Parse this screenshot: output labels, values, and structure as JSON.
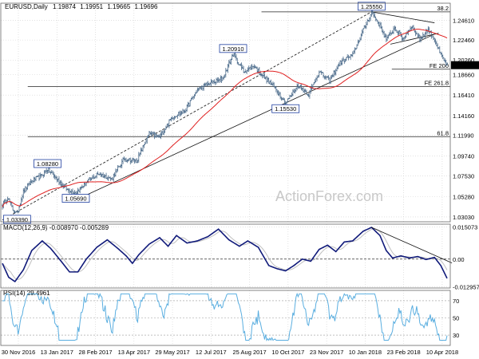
{
  "chart_data": [
    {
      "type": "candlestick",
      "title": "EURUSD,Daily",
      "ohlc": [
        "1.19874",
        "1.19951",
        "1.19665",
        "1.19696"
      ],
      "last_price": "1.19696",
      "ylim": [
        1.025,
        1.265
      ],
      "y_ticks": [
        1.0303,
        1.0528,
        1.0753,
        1.0974,
        1.1199,
        1.1416,
        1.1641,
        1.1866,
        1.2026,
        1.2246,
        1.2461
      ],
      "y_tick_labels": [
        "1.03030",
        "1.05280",
        "1.07530",
        "1.09740",
        "1.11990",
        "1.14160",
        "1.16410",
        "1.18660",
        "1.20260",
        "1.22460",
        "1.24610"
      ],
      "x_labels": [
        "30 Nov 2016",
        "13 Jan 2017",
        "28 Feb 2017",
        "13 Apr 2017",
        "29 May 2017",
        "12 Jul 2017",
        "25 Aug 2017",
        "10 Oct 2017",
        "23 Nov 2017",
        "10 Jan 2018",
        "23 Feb 2018",
        "10 Apr 2018"
      ],
      "anchors": [
        {
          "i": 0,
          "v": 1.043
        },
        {
          "i": 5,
          "v": 1.052
        },
        {
          "i": 10,
          "v": 1.0385
        },
        {
          "i": 14,
          "v": 1.0339
        },
        {
          "i": 20,
          "v": 1.058
        },
        {
          "i": 28,
          "v": 1.07
        },
        {
          "i": 37,
          "v": 1.075
        },
        {
          "i": 43,
          "v": 1.083
        },
        {
          "i": 52,
          "v": 1.072
        },
        {
          "i": 62,
          "v": 1.06
        },
        {
          "i": 70,
          "v": 1.0569
        },
        {
          "i": 80,
          "v": 1.068
        },
        {
          "i": 92,
          "v": 1.078
        },
        {
          "i": 104,
          "v": 1.072
        },
        {
          "i": 116,
          "v": 1.094
        },
        {
          "i": 128,
          "v": 1.092
        },
        {
          "i": 140,
          "v": 1.122
        },
        {
          "i": 150,
          "v": 1.118
        },
        {
          "i": 162,
          "v": 1.14
        },
        {
          "i": 174,
          "v": 1.147
        },
        {
          "i": 186,
          "v": 1.17
        },
        {
          "i": 196,
          "v": 1.176
        },
        {
          "i": 210,
          "v": 1.182
        },
        {
          "i": 220,
          "v": 1.2091
        },
        {
          "i": 230,
          "v": 1.19
        },
        {
          "i": 240,
          "v": 1.196
        },
        {
          "i": 250,
          "v": 1.183
        },
        {
          "i": 260,
          "v": 1.172
        },
        {
          "i": 270,
          "v": 1.1553
        },
        {
          "i": 282,
          "v": 1.175
        },
        {
          "i": 292,
          "v": 1.165
        },
        {
          "i": 302,
          "v": 1.19
        },
        {
          "i": 312,
          "v": 1.18
        },
        {
          "i": 322,
          "v": 1.2
        },
        {
          "i": 334,
          "v": 1.208
        },
        {
          "i": 344,
          "v": 1.235
        },
        {
          "i": 352,
          "v": 1.2555
        },
        {
          "i": 360,
          "v": 1.24
        },
        {
          "i": 366,
          "v": 1.225
        },
        {
          "i": 374,
          "v": 1.238
        },
        {
          "i": 382,
          "v": 1.226
        },
        {
          "i": 390,
          "v": 1.24
        },
        {
          "i": 398,
          "v": 1.226
        },
        {
          "i": 406,
          "v": 1.236
        },
        {
          "i": 412,
          "v": 1.225
        },
        {
          "i": 418,
          "v": 1.208
        },
        {
          "i": 424,
          "v": 1.1969
        }
      ],
      "labels": [
        {
          "text": "1.25550",
          "i": 352,
          "v": 1.2555,
          "pos": "above"
        },
        {
          "text": "1.20910",
          "i": 220,
          "v": 1.2091,
          "pos": "above"
        },
        {
          "text": "1.15530",
          "i": 270,
          "v": 1.1553,
          "pos": "below"
        },
        {
          "text": "1.08280",
          "i": 43,
          "v": 1.0828,
          "pos": "above"
        },
        {
          "text": "1.05690",
          "i": 70,
          "v": 1.0569,
          "pos": "below"
        },
        {
          "text": "1.03390",
          "i": 14,
          "v": 1.0339,
          "pos": "below"
        }
      ],
      "levels": [
        {
          "label": "38.2",
          "v": 1.2555,
          "x_start": 0.58
        },
        {
          "label": "FE 200",
          "v": 1.1925,
          "x_start": 0.87
        },
        {
          "label": "FE 261.8",
          "v": 1.1735,
          "x_start": 0.06
        },
        {
          "label": "61.8",
          "v": 1.1185,
          "x_start": 0.06
        }
      ]
    },
    {
      "type": "line",
      "title": "MACD(12,26,9) -0.008970 -0.005289",
      "ylim": [
        -0.0135,
        0.0163
      ],
      "y_ticks": [
        0.015073,
        0.0,
        -0.012957
      ],
      "y_tick_labels": [
        "0.015073",
        "0.00",
        "-0.012957"
      ],
      "macd_anchors": [
        {
          "i": 0,
          "v": -0.002
        },
        {
          "i": 6,
          "v": -0.0085
        },
        {
          "i": 12,
          "v": -0.0105
        },
        {
          "i": 20,
          "v": -0.005
        },
        {
          "i": 28,
          "v": 0.004
        },
        {
          "i": 38,
          "v": 0.0085
        },
        {
          "i": 46,
          "v": 0.005
        },
        {
          "i": 56,
          "v": -0.001
        },
        {
          "i": 64,
          "v": -0.006
        },
        {
          "i": 72,
          "v": -0.006
        },
        {
          "i": 80,
          "v": 0.0
        },
        {
          "i": 90,
          "v": 0.0055
        },
        {
          "i": 100,
          "v": 0.009
        },
        {
          "i": 110,
          "v": 0.005
        },
        {
          "i": 118,
          "v": 0.0015
        },
        {
          "i": 124,
          "v": -0.002
        },
        {
          "i": 130,
          "v": 0.002
        },
        {
          "i": 140,
          "v": 0.007
        },
        {
          "i": 150,
          "v": 0.01
        },
        {
          "i": 158,
          "v": 0.006
        },
        {
          "i": 166,
          "v": 0.011
        },
        {
          "i": 176,
          "v": 0.0075
        },
        {
          "i": 186,
          "v": 0.0085
        },
        {
          "i": 196,
          "v": 0.0105
        },
        {
          "i": 206,
          "v": 0.014
        },
        {
          "i": 216,
          "v": 0.009
        },
        {
          "i": 226,
          "v": 0.006
        },
        {
          "i": 234,
          "v": 0.0085
        },
        {
          "i": 244,
          "v": 0.0055
        },
        {
          "i": 254,
          "v": -0.003
        },
        {
          "i": 262,
          "v": -0.0045
        },
        {
          "i": 270,
          "v": -0.0055
        },
        {
          "i": 278,
          "v": -0.003
        },
        {
          "i": 286,
          "v": 0.0
        },
        {
          "i": 294,
          "v": -0.001
        },
        {
          "i": 302,
          "v": 0.0045
        },
        {
          "i": 310,
          "v": 0.0065
        },
        {
          "i": 318,
          "v": 0.0035
        },
        {
          "i": 326,
          "v": 0.008
        },
        {
          "i": 334,
          "v": 0.0085
        },
        {
          "i": 344,
          "v": 0.013
        },
        {
          "i": 352,
          "v": 0.0148
        },
        {
          "i": 360,
          "v": 0.011
        },
        {
          "i": 366,
          "v": 0.004
        },
        {
          "i": 372,
          "v": 0.0005
        },
        {
          "i": 380,
          "v": 0.0015
        },
        {
          "i": 388,
          "v": 0.0005
        },
        {
          "i": 396,
          "v": 0.0012
        },
        {
          "i": 404,
          "v": -0.0002
        },
        {
          "i": 412,
          "v": 0.0008
        },
        {
          "i": 418,
          "v": -0.003
        },
        {
          "i": 424,
          "v": -0.00897
        }
      ],
      "trendline": {
        "i1": 352,
        "v1": 0.0148,
        "i2": 418,
        "v2": -0.001
      }
    },
    {
      "type": "line",
      "title": "RSI(14) 29.4961",
      "ylim": [
        18,
        82
      ],
      "y_ticks": [
        70,
        50,
        30
      ],
      "y_tick_labels": [
        "70",
        "50",
        "30"
      ],
      "last_value": 29.4961
    }
  ]
}
